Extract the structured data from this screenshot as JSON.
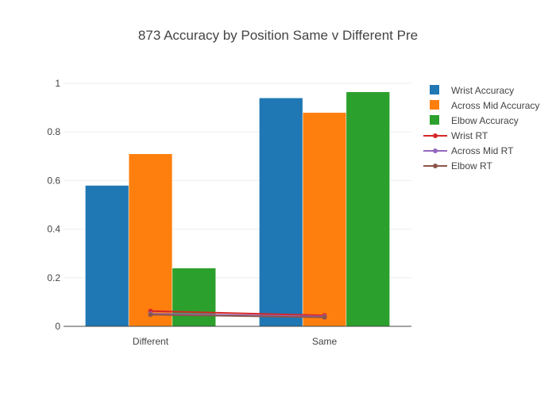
{
  "chart_data": {
    "type": "bar",
    "title": "873 Accuracy by Position Same v Different Pre",
    "xlabel": "",
    "ylabel": "",
    "categories": [
      "Different",
      "Same"
    ],
    "ylim": [
      0,
      1
    ],
    "yticks": [
      0,
      0.2,
      0.4,
      0.6,
      0.8,
      1
    ],
    "ytick_labels": [
      "0",
      "0.2",
      "0.4",
      "0.6",
      "0.8",
      "1"
    ],
    "grid": true,
    "legend_position": "right",
    "bar_series": [
      {
        "name": "Wrist Accuracy",
        "color": "#1f77b4",
        "values": [
          0.58,
          0.94
        ]
      },
      {
        "name": "Across Mid Accuracy",
        "color": "#ff7f0e",
        "values": [
          0.71,
          0.88
        ]
      },
      {
        "name": "Elbow Accuracy",
        "color": "#2ca02c",
        "values": [
          0.24,
          0.965
        ]
      }
    ],
    "line_series": [
      {
        "name": "Wrist RT",
        "color": "#d62728",
        "values": [
          0.063,
          0.045
        ]
      },
      {
        "name": "Across Mid RT",
        "color": "#9467bd",
        "values": [
          0.052,
          0.04
        ]
      },
      {
        "name": "Elbow RT",
        "color": "#8c564b",
        "values": [
          0.048,
          0.037
        ]
      }
    ]
  }
}
